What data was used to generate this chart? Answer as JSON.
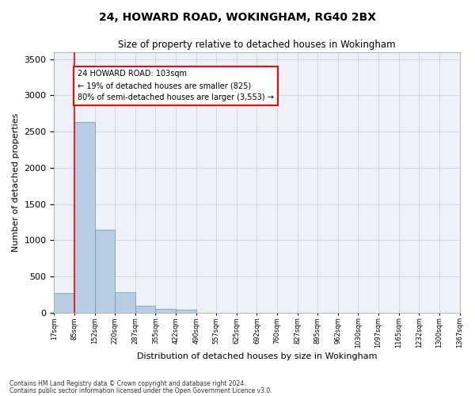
{
  "title1": "24, HOWARD ROAD, WOKINGHAM, RG40 2BX",
  "title2": "Size of property relative to detached houses in Wokingham",
  "xlabel": "Distribution of detached houses by size in Wokingham",
  "ylabel": "Number of detached properties",
  "bar_color": "#b8cce4",
  "bar_edge_color": "#7094b8",
  "grid_color": "#d0d8e8",
  "background_color": "#eef2f8",
  "bin_labels": [
    "17sqm",
    "85sqm",
    "152sqm",
    "220sqm",
    "287sqm",
    "355sqm",
    "422sqm",
    "490sqm",
    "557sqm",
    "625sqm",
    "692sqm",
    "760sqm",
    "827sqm",
    "895sqm",
    "962sqm",
    "1030sqm",
    "1097sqm",
    "1165sqm",
    "1232sqm",
    "1300sqm",
    "1367sqm"
  ],
  "bar_heights": [
    270,
    2630,
    1140,
    280,
    90,
    55,
    35,
    0,
    0,
    0,
    0,
    0,
    0,
    0,
    0,
    0,
    0,
    0,
    0,
    0
  ],
  "property_line_x": 1,
  "property_line_label": "24 HOWARD ROAD: 103sqm",
  "annotation_line1": "← 19% of detached houses are smaller (825)",
  "annotation_line2": "80% of semi-detached houses are larger (3,553) →",
  "ylim": [
    0,
    3600
  ],
  "yticks": [
    0,
    500,
    1000,
    1500,
    2000,
    2500,
    3000,
    3500
  ],
  "footnote1": "Contains HM Land Registry data © Crown copyright and database right 2024.",
  "footnote2": "Contains public sector information licensed under the Open Government Licence v3.0."
}
